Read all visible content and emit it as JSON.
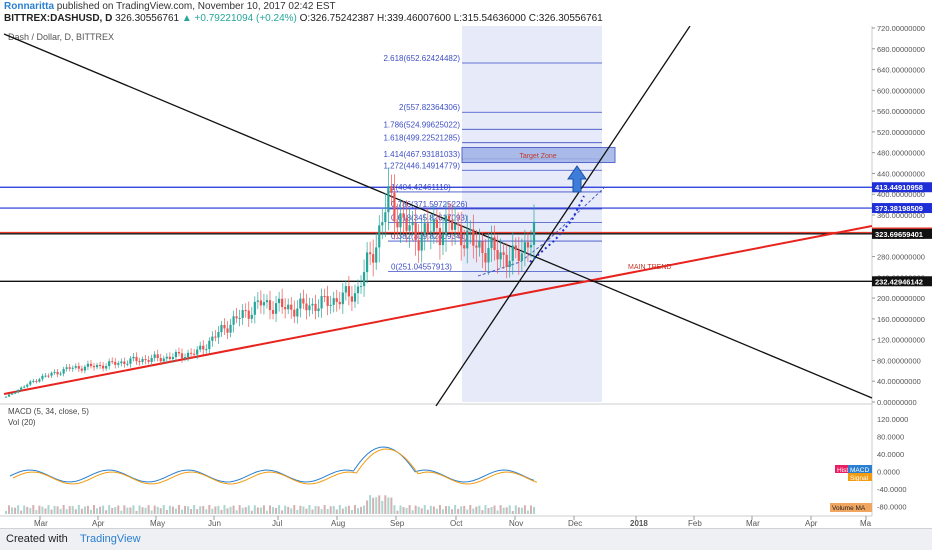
{
  "header": {
    "author": "Ronnaritta",
    "published": "published on TradingView.com, November 10, 2017 02:42 EST",
    "symbol": "BITTREX:DASHUSD, D",
    "last": "326.30556761",
    "change": "▲ +0.79221094 (+0.24%)",
    "open": "O:326.75242387",
    "high": "H:339.46007600",
    "low": "L:315.54636000",
    "close": "C:326.30556761"
  },
  "chart_title": "Dash / Dollar, D, BITTREX",
  "footer": {
    "made_with": "Created with",
    "brand": "TradingView"
  },
  "chart_data": {
    "type": "candlestick",
    "symbol": "DASHUSD",
    "interval": "1D",
    "ylim": [
      0,
      720
    ],
    "y_ticks": [
      "0.00000000",
      "40.00000000",
      "80.00000000",
      "120.00000000",
      "160.00000000",
      "200.00000000",
      "240.00000000",
      "280.00000000",
      "320.00000000",
      "360.00000000",
      "400.00000000",
      "440.00000000",
      "480.00000000",
      "520.00000000",
      "560.00000000",
      "600.00000000",
      "640.00000000",
      "680.00000000",
      "720.00000000"
    ],
    "x_ticks": [
      "Mar",
      "Apr",
      "May",
      "Jun",
      "Jul",
      "Aug",
      "Sep",
      "Oct",
      "Nov",
      "Dec",
      "2018",
      "Feb",
      "Mar",
      "Apr",
      "Ma"
    ],
    "price_path_approx": [
      {
        "x": 0,
        "y": 10
      },
      {
        "x": 0.5,
        "y": 45
      },
      {
        "x": 1,
        "y": 65
      },
      {
        "x": 1.5,
        "y": 70
      },
      {
        "x": 2,
        "y": 80
      },
      {
        "x": 2.5,
        "y": 85
      },
      {
        "x": 3,
        "y": 95
      },
      {
        "x": 3.5,
        "y": 150
      },
      {
        "x": 4,
        "y": 190
      },
      {
        "x": 4.5,
        "y": 180
      },
      {
        "x": 5,
        "y": 190
      },
      {
        "x": 5.5,
        "y": 210
      },
      {
        "x": 5.8,
        "y": 300
      },
      {
        "x": 6,
        "y": 390
      },
      {
        "x": 6.4,
        "y": 320
      },
      {
        "x": 7,
        "y": 340
      },
      {
        "x": 7.4,
        "y": 300
      },
      {
        "x": 8,
        "y": 275
      },
      {
        "x": 8.3,
        "y": 326
      }
    ],
    "fib_levels": [
      {
        "label": "0(251.04557913)",
        "value": 251.04557913
      },
      {
        "label": "0.382(309.82409341)",
        "value": 309.82409341
      },
      {
        "label": "0.618(345.82617093)",
        "value": 345.82617093
      },
      {
        "label": "0.786(371.59725226)",
        "value": 371.59725226
      },
      {
        "label": "1(404.42461110)",
        "value": 404.4246111
      },
      {
        "label": "1.272(446.14914779)",
        "value": 446.14914779
      },
      {
        "label": "1.414(467.93181033)",
        "value": 467.93181033
      },
      {
        "label": "1.618(499.22521285)",
        "value": 499.22521285
      },
      {
        "label": "1.786(524.99625022)",
        "value": 524.99625022
      },
      {
        "label": "2(557.82364306)",
        "value": 557.82364306
      },
      {
        "label": "2.618(652.62424482)",
        "value": 652.62424482
      }
    ],
    "horizontal_levels": [
      {
        "label": "413.44910958",
        "value": 413.44910958,
        "color": "#1e2fd8"
      },
      {
        "label": "373.38198509",
        "value": 373.38198509,
        "color": "#1e2fd8"
      },
      {
        "label": "326.30556761",
        "value": 326.30556761,
        "color": "#e8392a"
      },
      {
        "label": "323.69659401",
        "value": 323.69659401,
        "color": "#111111"
      },
      {
        "label": "232.42946142",
        "value": 232.42946142,
        "color": "#111111"
      }
    ],
    "annotations": [
      "Target Zone",
      "MAIN TREND"
    ],
    "indicators": {
      "macd_label": "MACD (5, 34, close, 5)",
      "vol_label": "Vol (20)",
      "macd_ticks": [
        "120.0000",
        "80.0000",
        "40.0000",
        "0.0000",
        "-40.0000",
        "-80.0000"
      ],
      "tags": [
        "Hist",
        "MACD",
        "Signal",
        "Volume MA"
      ]
    },
    "colors": {
      "up": "#26a69a",
      "down": "#ef5350",
      "fib": "#3d4fc4",
      "trend": "#e8221c",
      "zone": "#b8c4ee"
    }
  }
}
